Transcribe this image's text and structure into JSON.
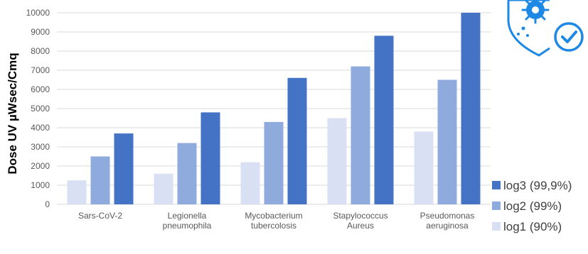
{
  "chart_data": {
    "type": "bar",
    "ylabel": "Dose UV µWsec/Cmq",
    "xlabel": "",
    "title": "",
    "ylim": [
      0,
      10000
    ],
    "yticks": [
      0,
      1000,
      2000,
      3000,
      4000,
      5000,
      6000,
      7000,
      8000,
      9000,
      10000
    ],
    "grid": true,
    "legend_position": "bottom-right",
    "categories": [
      [
        "Sars-CoV-2"
      ],
      [
        "Legionella",
        "pneumophila"
      ],
      [
        "Mycobacterium",
        "tubercolosis"
      ],
      [
        "Stapylococcus",
        "Aureus"
      ],
      [
        "Pseudomonas",
        "aeruginosa"
      ]
    ],
    "series": [
      {
        "name": "log1 (90%)",
        "color": "#d9e0f3",
        "values": [
          1250,
          1600,
          2200,
          4500,
          3800
        ]
      },
      {
        "name": "log2 (99%)",
        "color": "#8faadc",
        "values": [
          2500,
          3200,
          4300,
          7200,
          6500
        ]
      },
      {
        "name": "log3 (99,9%)",
        "color": "#4472c4",
        "values": [
          3700,
          4800,
          6600,
          8800,
          10000
        ]
      }
    ],
    "legend_order": [
      2,
      1,
      0
    ]
  },
  "logo": {
    "icon": "virus-shield-check-icon",
    "color": "#1e88e5"
  }
}
